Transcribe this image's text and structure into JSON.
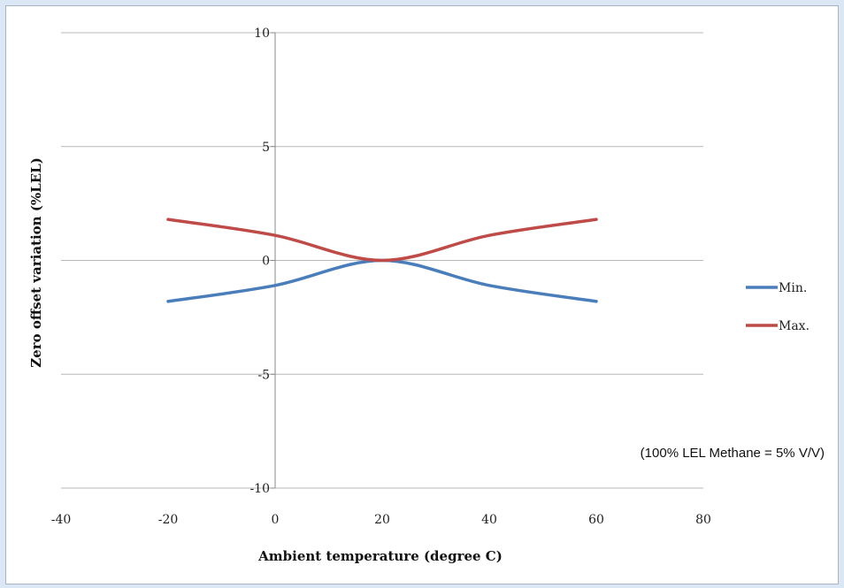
{
  "chart_data": {
    "type": "line",
    "xlabel": "Ambient temperature (degree C)",
    "ylabel": "Zero offset variation (%LEL)",
    "xlim": [
      -40,
      80
    ],
    "ylim": [
      -10,
      10
    ],
    "x_ticks": [
      -40,
      -20,
      0,
      20,
      40,
      60,
      80
    ],
    "x_tick_labels": [
      "-40",
      "-20",
      "0",
      "20",
      "40",
      "60",
      "80"
    ],
    "y_ticks": [
      10,
      5,
      0,
      -5,
      -10
    ],
    "y_tick_labels": [
      "10",
      "5",
      "0",
      "-5",
      "-10"
    ],
    "grid": "horizontal",
    "legend": "right",
    "annotation": "(100% LEL Methane = 5% V/V)",
    "series": [
      {
        "name": "Min.",
        "color": "#4a7ebb",
        "x": [
          -20,
          0,
          20,
          40,
          60
        ],
        "y": [
          -1.8,
          -1.1,
          0,
          -1.1,
          -1.8
        ]
      },
      {
        "name": "Max.",
        "color": "#be4b48",
        "x": [
          -20,
          0,
          20,
          40,
          60
        ],
        "y": [
          1.8,
          1.1,
          0,
          1.1,
          1.8
        ]
      }
    ]
  }
}
